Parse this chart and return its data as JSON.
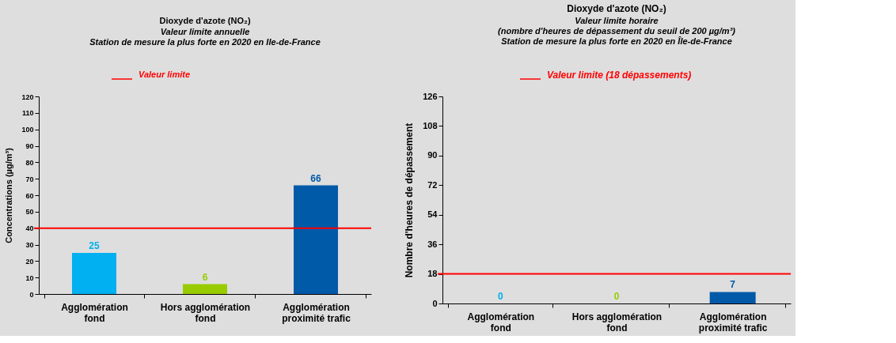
{
  "chart_data": [
    {
      "type": "bar",
      "title": "Dioxyde d'azote (NO₂)",
      "subtitle": [
        "Valeur limite annuelle",
        "Station de mesure la plus forte en 2020 en Ile-de-France"
      ],
      "ylabel": "Concentrations (µg/m³)",
      "categories": [
        "Agglomération\nfond",
        "Hors agglomération\nfond",
        "Agglomération\nproximité trafic"
      ],
      "values": [
        25,
        6,
        66
      ],
      "colors": [
        "#00b0f0",
        "#99cc00",
        "#005aa8"
      ],
      "ylim": [
        0,
        120
      ],
      "yticks": [
        0,
        10,
        20,
        30,
        40,
        50,
        60,
        70,
        80,
        90,
        100,
        110,
        120
      ],
      "data_labels": true,
      "ref_lines": [
        {
          "axis": "y",
          "value": 40,
          "label": "Valeur limite",
          "color": "#ff0000"
        }
      ]
    },
    {
      "type": "bar",
      "title": "Dioxyde d'azote (NO₂)",
      "subtitle": [
        "Valeur limite horaire",
        "(nombre d'heures de dépassement du seuil de 200 µg/m³)",
        "Station de mesure la plus forte en 2020 en Île-de-France"
      ],
      "ylabel": "Nombre d'heures de dépassement",
      "categories": [
        "Agglomération\nfond",
        "Hors agglomération\nfond",
        "Agglomération\nproximité trafic"
      ],
      "values": [
        0,
        0,
        7
      ],
      "colors": [
        "#00b0f0",
        "#99cc00",
        "#005aa8"
      ],
      "ylim": [
        0,
        126
      ],
      "yticks": [
        0,
        18,
        36,
        54,
        72,
        90,
        108,
        126
      ],
      "data_labels": true,
      "ref_lines": [
        {
          "axis": "y",
          "value": 18,
          "label": "Valeur limite (18 dépassements)",
          "color": "#ff0000"
        }
      ]
    }
  ]
}
